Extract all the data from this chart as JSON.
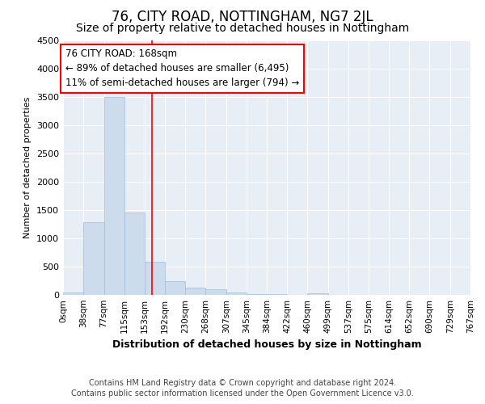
{
  "title": "76, CITY ROAD, NOTTINGHAM, NG7 2JL",
  "subtitle": "Size of property relative to detached houses in Nottingham",
  "xlabel": "Distribution of detached houses by size in Nottingham",
  "ylabel": "Number of detached properties",
  "bar_color": "#cddcec",
  "bar_edge_color": "#a0bcd8",
  "background_color": "#e8eef6",
  "red_line_x": 168,
  "annotation_line1": "76 CITY ROAD: 168sqm",
  "annotation_line2": "← 89% of detached houses are smaller (6,495)",
  "annotation_line3": "11% of semi-detached houses are larger (794) →",
  "bin_edges": [
    0,
    38,
    77,
    115,
    153,
    192,
    230,
    268,
    307,
    345,
    384,
    422,
    460,
    499,
    537,
    575,
    614,
    652,
    690,
    729,
    767
  ],
  "bar_heights": [
    50,
    1290,
    3500,
    1460,
    590,
    245,
    130,
    95,
    50,
    20,
    10,
    5,
    30,
    0,
    0,
    0,
    0,
    0,
    0,
    0
  ],
  "ylim": [
    0,
    4500
  ],
  "yticks": [
    0,
    500,
    1000,
    1500,
    2000,
    2500,
    3000,
    3500,
    4000,
    4500
  ],
  "footnote1": "Contains HM Land Registry data © Crown copyright and database right 2024.",
  "footnote2": "Contains public sector information licensed under the Open Government Licence v3.0.",
  "grid_color": "#ffffff",
  "title_fontsize": 12,
  "subtitle_fontsize": 10,
  "xlabel_fontsize": 9,
  "ylabel_fontsize": 8,
  "footnote_fontsize": 7
}
